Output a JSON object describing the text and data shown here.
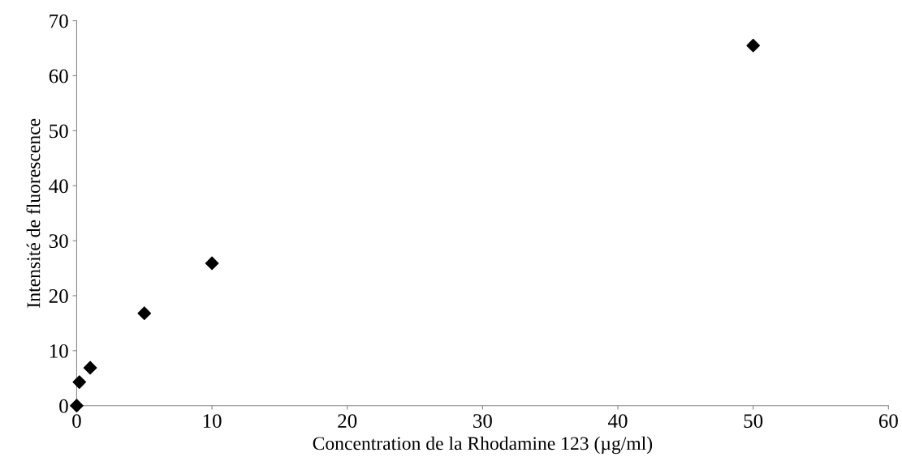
{
  "chart_data": {
    "type": "scatter",
    "xlabel": "Concentration de la Rhodamine 123 (µg/ml)",
    "ylabel": "Intensité de fluorescence",
    "x": [
      0,
      0.2,
      1,
      5,
      10,
      50
    ],
    "series": [
      {
        "color": "#000000",
        "values": [
          0,
          4.3,
          6.9,
          16.8,
          25.9,
          65.5
        ]
      }
    ],
    "marker": "diamond",
    "xlim": [
      0,
      60
    ],
    "xticks": [
      0,
      10,
      20,
      30,
      40,
      50,
      60
    ],
    "ylim": [
      0,
      70
    ],
    "yticks": [
      0,
      10,
      20,
      30,
      40,
      50,
      60,
      70
    ],
    "grid": false,
    "legend": false
  }
}
